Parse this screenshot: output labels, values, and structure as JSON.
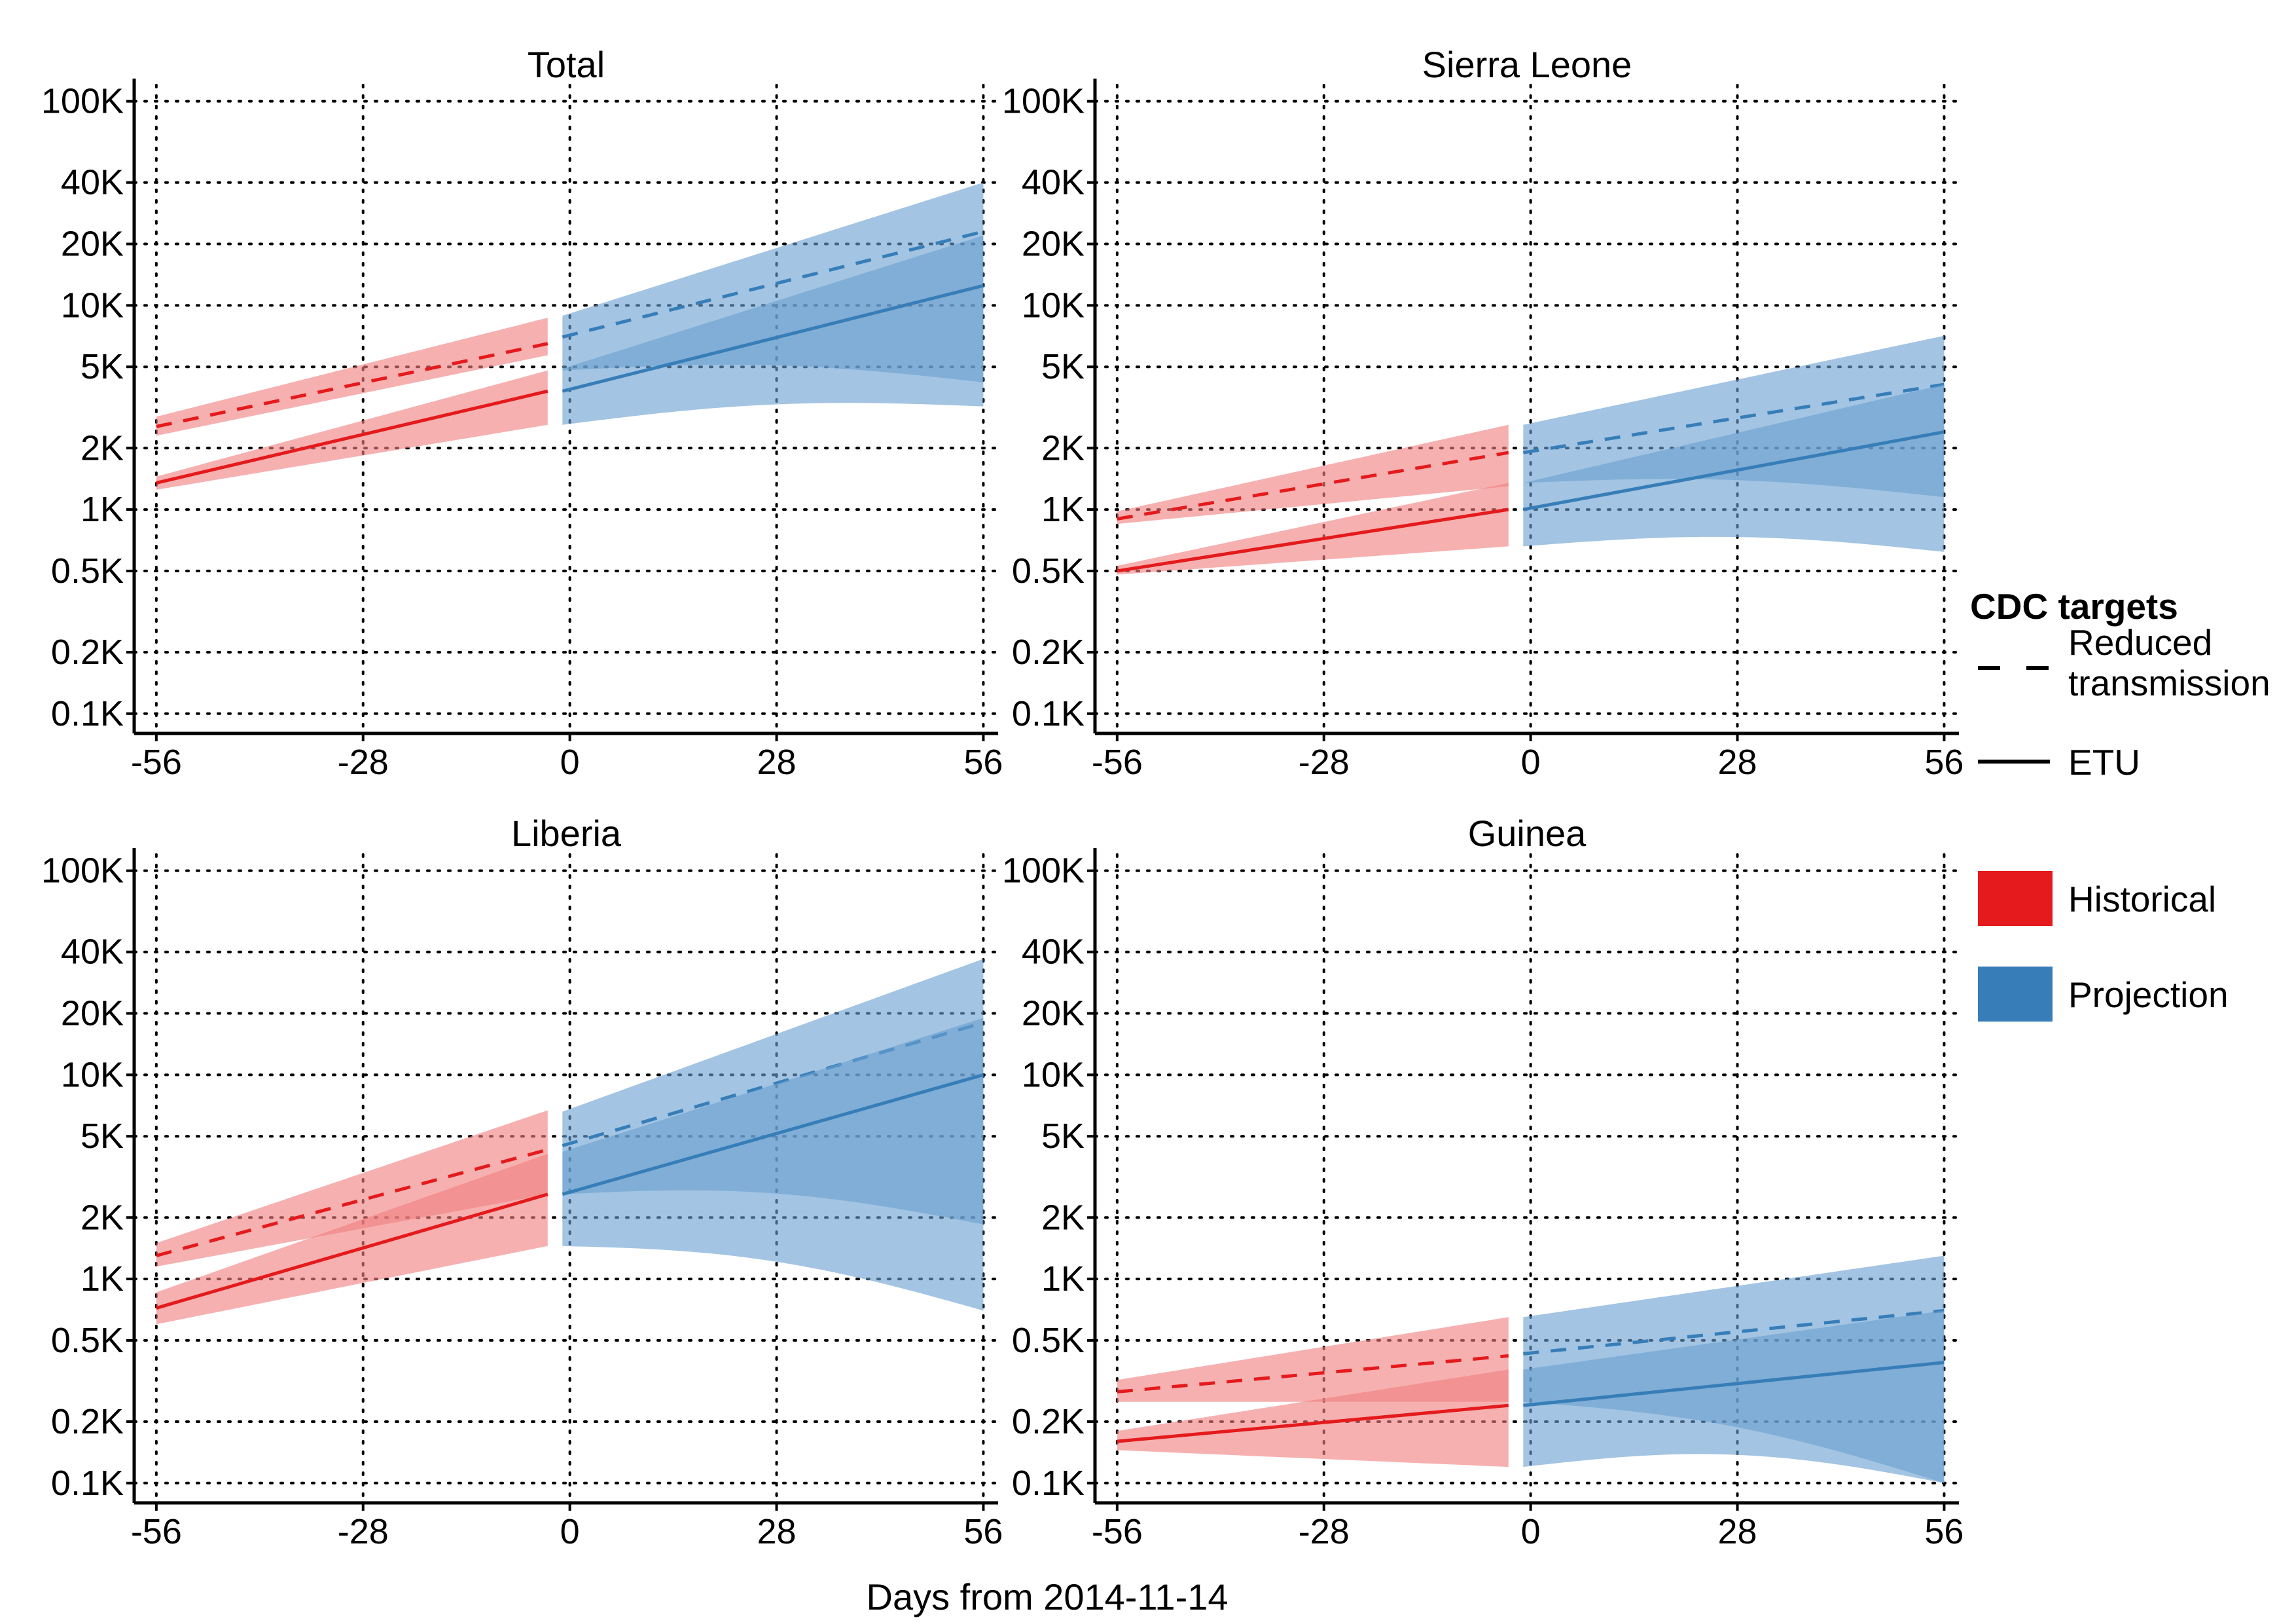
{
  "colors": {
    "historical_line": "#e41a1c",
    "historical_fill": "#f08080",
    "projection_line": "#377eb8",
    "projection_fill": "#6a9fd0",
    "grid": "#000000"
  },
  "chart_data": {
    "type": "line",
    "scale": "log10",
    "xlabel": "Days from 2014-11-14",
    "ylim": [
      80,
      120000
    ],
    "xlim": [
      -59,
      58
    ],
    "x_ticks": [
      -56,
      -28,
      0,
      28,
      56
    ],
    "x_tick_labels": [
      "-56",
      "-28",
      "0",
      "28",
      "56"
    ],
    "y_ticks": [
      100,
      200,
      500,
      1000,
      2000,
      5000,
      10000,
      20000,
      40000,
      100000
    ],
    "y_tick_labels": [
      "0.1K",
      "0.2K",
      "0.5K",
      "1K",
      "2K",
      "5K",
      "10K",
      "20K",
      "40K",
      "100K"
    ],
    "grid": "dotted",
    "legend": {
      "position": "right",
      "linetype_title": "CDC targets",
      "linetype_entries": [
        {
          "label_lines": [
            "Reduced",
            "transmission"
          ],
          "style": "dashed"
        },
        {
          "label_lines": [
            "ETU"
          ],
          "style": "solid"
        }
      ],
      "fill_entries": [
        {
          "label": "Historical"
        },
        {
          "label": "Projection"
        }
      ]
    },
    "panels": [
      {
        "title": "Total",
        "series": [
          {
            "target": "Reduced transmission",
            "period": "Historical",
            "x": [
              -56,
              -3
            ],
            "y": [
              2550,
              6500
            ],
            "lower": [
              2300,
              5700
            ],
            "upper": [
              2850,
              8700
            ]
          },
          {
            "target": "ETU",
            "period": "Historical",
            "x": [
              -56,
              -3
            ],
            "y": [
              1350,
              3800
            ],
            "lower": [
              1250,
              2600
            ],
            "upper": [
              1450,
              4800
            ]
          },
          {
            "target": "Reduced transmission",
            "period": "Projection",
            "x": [
              -1,
              56
            ],
            "y": [
              7000,
              23000
            ],
            "lower": [
              4800,
              4200
            ],
            "upper": [
              8900,
              40000
            ]
          },
          {
            "target": "ETU",
            "period": "Projection",
            "x": [
              -1,
              56
            ],
            "y": [
              3800,
              12500
            ],
            "lower": [
              2600,
              3200
            ],
            "upper": [
              4900,
              22000
            ]
          }
        ]
      },
      {
        "title": "Sierra Leone",
        "series": [
          {
            "target": "Reduced transmission",
            "period": "Historical",
            "x": [
              -56,
              -3
            ],
            "y": [
              900,
              1900
            ],
            "lower": [
              850,
              1300
            ],
            "upper": [
              980,
              2600
            ]
          },
          {
            "target": "ETU",
            "period": "Historical",
            "x": [
              -56,
              -3
            ],
            "y": [
              500,
              1000
            ],
            "lower": [
              480,
              660
            ],
            "upper": [
              530,
              1350
            ]
          },
          {
            "target": "Reduced transmission",
            "period": "Projection",
            "x": [
              -1,
              56
            ],
            "y": [
              1900,
              4100
            ],
            "lower": [
              1350,
              1150
            ],
            "upper": [
              2600,
              7100
            ]
          },
          {
            "target": "ETU",
            "period": "Projection",
            "x": [
              -1,
              56
            ],
            "y": [
              1000,
              2400
            ],
            "lower": [
              660,
              620
            ],
            "upper": [
              1350,
              4100
            ]
          }
        ]
      },
      {
        "title": "Liberia",
        "series": [
          {
            "target": "Reduced transmission",
            "period": "Historical",
            "x": [
              -56,
              -3
            ],
            "y": [
              1300,
              4300
            ],
            "lower": [
              1150,
              2600
            ],
            "upper": [
              1500,
              6700
            ]
          },
          {
            "target": "ETU",
            "period": "Historical",
            "x": [
              -56,
              -3
            ],
            "y": [
              720,
              2600
            ],
            "lower": [
              600,
              1450
            ],
            "upper": [
              860,
              4100
            ]
          },
          {
            "target": "Reduced transmission",
            "period": "Projection",
            "x": [
              -1,
              56
            ],
            "y": [
              4500,
              18000
            ],
            "lower": [
              2600,
              1850
            ],
            "upper": [
              6600,
              37000
            ]
          },
          {
            "target": "ETU",
            "period": "Projection",
            "x": [
              -1,
              56
            ],
            "y": [
              2600,
              10000
            ],
            "lower": [
              1450,
              700
            ],
            "upper": [
              4200,
              19000
            ]
          }
        ]
      },
      {
        "title": "Guinea",
        "series": [
          {
            "target": "Reduced transmission",
            "period": "Historical",
            "x": [
              -56,
              -3
            ],
            "y": [
              280,
              420
            ],
            "lower": [
              250,
              250
            ],
            "upper": [
              320,
              650
            ]
          },
          {
            "target": "ETU",
            "period": "Historical",
            "x": [
              -56,
              -3
            ],
            "y": [
              160,
              240
            ],
            "lower": [
              145,
              120
            ],
            "upper": [
              180,
              360
            ]
          },
          {
            "target": "Reduced transmission",
            "period": "Projection",
            "x": [
              -1,
              56
            ],
            "y": [
              430,
              700
            ],
            "lower": [
              250,
              100
            ],
            "upper": [
              650,
              1300
            ]
          },
          {
            "target": "ETU",
            "period": "Projection",
            "x": [
              -1,
              56
            ],
            "y": [
              240,
              390
            ],
            "lower": [
              120,
              100
            ],
            "upper": [
              360,
              700
            ]
          }
        ]
      }
    ]
  }
}
